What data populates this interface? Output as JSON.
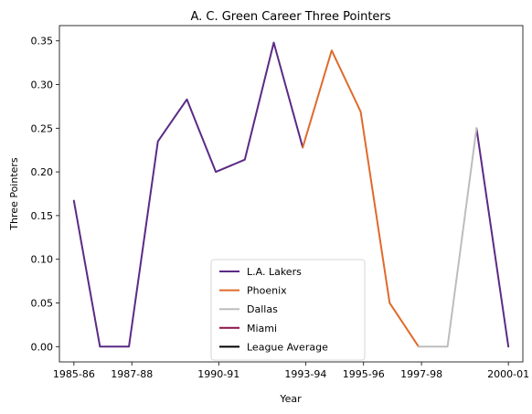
{
  "chart_data": {
    "type": "line",
    "title": "A. C. Green Career Three Pointers",
    "xlabel": "Year",
    "ylabel": "Three Pointers",
    "xlim": [
      -0.5,
      15.5
    ],
    "ylim": [
      -0.0175,
      0.3675
    ],
    "x_ticks": [
      {
        "index": 0,
        "label": "1985-86"
      },
      {
        "index": 2,
        "label": "1987-88"
      },
      {
        "index": 5,
        "label": "1990-91"
      },
      {
        "index": 8,
        "label": "1993-94"
      },
      {
        "index": 10,
        "label": "1995-96"
      },
      {
        "index": 12,
        "label": "1997-98"
      },
      {
        "index": 15,
        "label": "2000-01"
      }
    ],
    "y_ticks": [
      {
        "value": 0.0,
        "label": "0.00"
      },
      {
        "value": 0.05,
        "label": "0.05"
      },
      {
        "value": 0.1,
        "label": "0.10"
      },
      {
        "value": 0.15,
        "label": "0.15"
      },
      {
        "value": 0.2,
        "label": "0.20"
      },
      {
        "value": 0.25,
        "label": "0.25"
      },
      {
        "value": 0.3,
        "label": "0.30"
      },
      {
        "value": 0.35,
        "label": "0.35"
      }
    ],
    "series": [
      {
        "name": "L.A. Lakers",
        "color": "#5b2a86",
        "points": [
          [
            0,
            0.167
          ],
          [
            0.9,
            0.0
          ],
          [
            1.9,
            0.0
          ],
          [
            2.9,
            0.235
          ],
          [
            3.9,
            0.283
          ],
          [
            4.9,
            0.2
          ],
          [
            5.9,
            0.214
          ],
          [
            6.9,
            0.348
          ],
          [
            7.9,
            0.228
          ]
        ]
      },
      {
        "name": "L.A. Lakers",
        "color": "#5b2a86",
        "points": [
          [
            13.9,
            0.25
          ],
          [
            15.0,
            0.0
          ]
        ]
      },
      {
        "name": "Phoenix",
        "color": "#e06a2b",
        "points": [
          [
            7.9,
            0.228
          ],
          [
            8.9,
            0.339
          ],
          [
            9.9,
            0.269
          ],
          [
            10.9,
            0.05
          ],
          [
            11.9,
            0.0
          ]
        ]
      },
      {
        "name": "Dallas",
        "color": "#bdbdbd",
        "points": [
          [
            11.9,
            0.0
          ],
          [
            12.9,
            0.0
          ],
          [
            13.9,
            0.25
          ]
        ]
      },
      {
        "name": "Miami",
        "color": "#8b1048",
        "points": []
      },
      {
        "name": "League Average",
        "color": "#000000",
        "points": []
      }
    ],
    "legend": {
      "placement": "lower-center",
      "entries": [
        {
          "name": "L.A. Lakers",
          "color": "#5b2a86"
        },
        {
          "name": "Phoenix",
          "color": "#e06a2b"
        },
        {
          "name": "Dallas",
          "color": "#bdbdbd"
        },
        {
          "name": "Miami",
          "color": "#8b1048"
        },
        {
          "name": "League Average",
          "color": "#000000"
        }
      ]
    },
    "grid": false
  }
}
